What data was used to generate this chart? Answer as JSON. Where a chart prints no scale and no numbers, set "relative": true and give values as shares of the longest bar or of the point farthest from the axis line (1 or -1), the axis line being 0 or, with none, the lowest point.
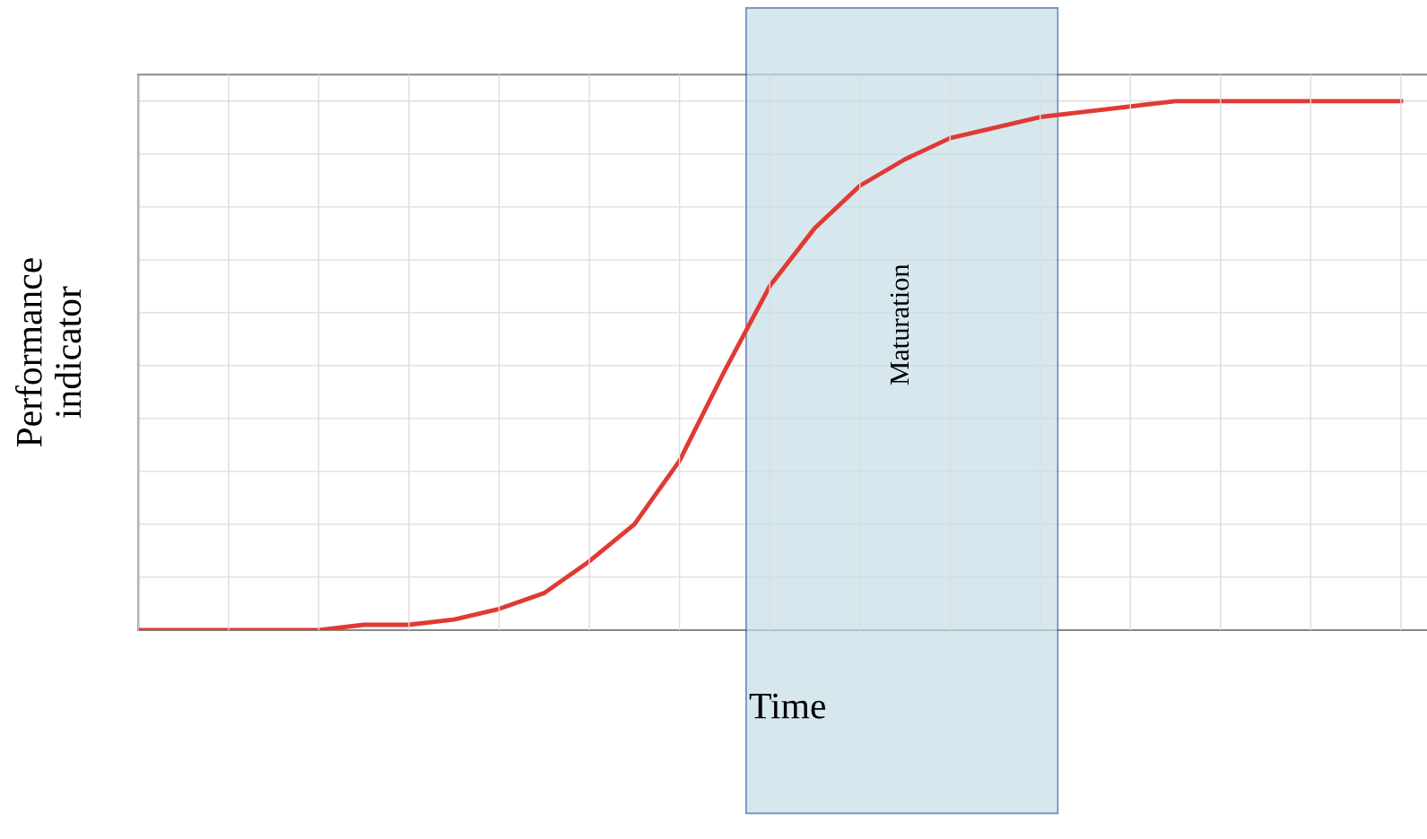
{
  "chart_data": {
    "type": "line",
    "relative": true,
    "xlabel": "Time",
    "ylabel": "Performance\nindicator",
    "categories": [
      null,
      null,
      null,
      null,
      null,
      null,
      null,
      null,
      null,
      null,
      null,
      null,
      null,
      null,
      null,
      null,
      null,
      null,
      null,
      null,
      null,
      null,
      null,
      null,
      null,
      null,
      null,
      null,
      null
    ],
    "series": [
      {
        "color": "#e03a35",
        "values": [
          0,
          0,
          0,
          0,
          0,
          0.01,
          0.01,
          0.02,
          0.04,
          0.07,
          0.13,
          0.2,
          0.32,
          0.49,
          0.65,
          0.76,
          0.84,
          0.89,
          0.93,
          0.95,
          0.97,
          0.98,
          0.99,
          1,
          1,
          1,
          1,
          1,
          1
        ]
      }
    ],
    "annotations": [
      "Maturation"
    ],
    "grid": true,
    "tick_labels": false,
    "marker": "none",
    "line_style": "solid",
    "legend": false
  }
}
